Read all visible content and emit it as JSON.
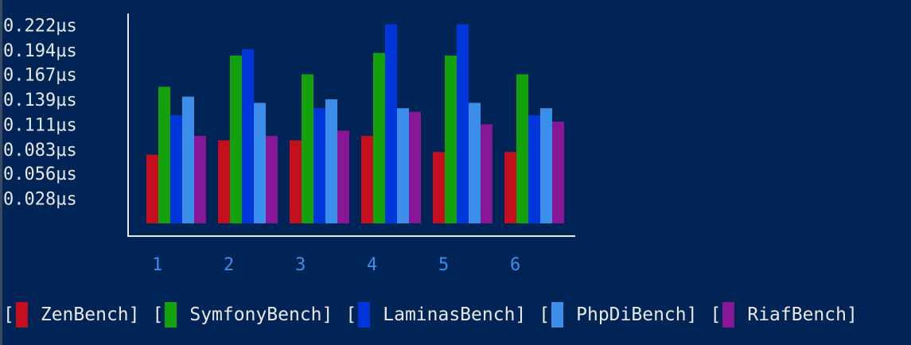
{
  "colors": {
    "background": "#012456",
    "axis": "#e8e8e8",
    "text": "#e8e8e8",
    "xlabel": "#3b8eea"
  },
  "chart_data": {
    "type": "bar",
    "categories": [
      "1",
      "2",
      "3",
      "4",
      "5",
      "6"
    ],
    "ylim": [
      0,
      0.236
    ],
    "yticks": [
      "0.028µs",
      "0.056µs",
      "0.083µs",
      "0.111µs",
      "0.139µs",
      "0.167µs",
      "0.194µs",
      "0.222µs"
    ],
    "ytick_values": [
      0.028,
      0.056,
      0.083,
      0.111,
      0.139,
      0.167,
      0.194,
      0.222
    ],
    "legend_position": "bottom",
    "series": [
      {
        "name": "ZenBench",
        "color": "#c50f1f",
        "values": [
          0.077,
          0.093,
          0.093,
          0.098,
          0.08,
          0.08
        ]
      },
      {
        "name": "SymfonyBench",
        "color": "#13a10e",
        "values": [
          0.153,
          0.188,
          0.167,
          0.191,
          0.188,
          0.167
        ]
      },
      {
        "name": "LaminasBench",
        "color": "#0037da",
        "values": [
          0.121,
          0.195,
          0.129,
          0.223,
          0.223,
          0.121
        ]
      },
      {
        "name": "PhpDiBench",
        "color": "#3b8eea",
        "values": [
          0.142,
          0.135,
          0.139,
          0.129,
          0.135,
          0.129
        ]
      },
      {
        "name": "RiafBench",
        "color": "#881798",
        "values": [
          0.098,
          0.098,
          0.104,
          0.125,
          0.111,
          0.114
        ]
      }
    ]
  }
}
